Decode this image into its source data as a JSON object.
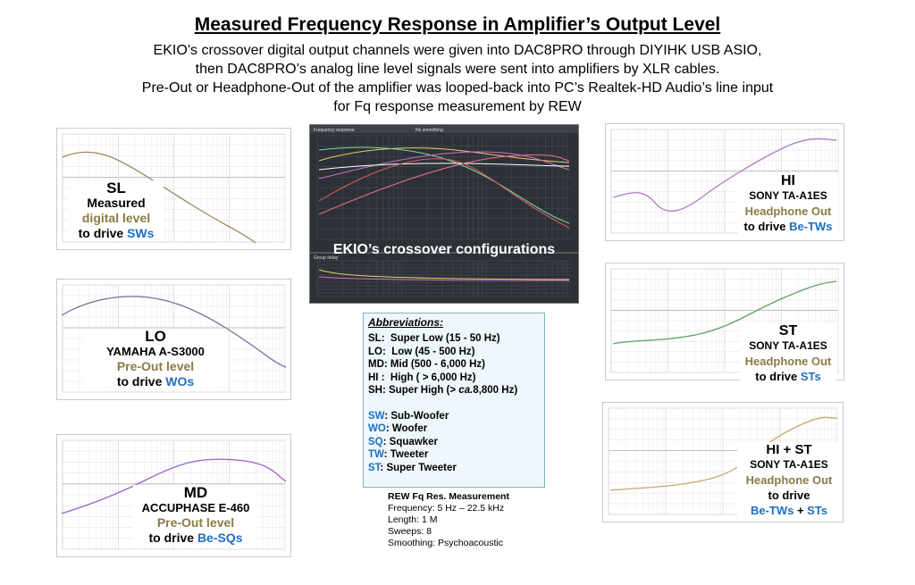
{
  "title": "Measured Frequency Response in Amplifier’s Output Level",
  "subtitle_lines": [
    "EKIO’s crossover digital output channels were given into DAC8PRO through DIYIHK USB ASIO,",
    "then DAC8PRO’s analog line level signals were sent into amplifiers by XLR cables.",
    "Pre-Out or Headphone-Out of the amplifier was looped-back into PC’s Realtek-HD Audio’s line input",
    "for Fq response measurement by REW"
  ],
  "panels": {
    "sl": {
      "band": "SL",
      "line1": "Measured",
      "line2": "digital level",
      "line3_prefix": "to drive ",
      "target": "SWs",
      "curve_color": "#9a8a5a"
    },
    "lo": {
      "band": "LO",
      "line1": "YAMAHA A-S3000",
      "line2": "Pre-Out level",
      "line3_prefix": "to drive ",
      "target": "WOs",
      "curve_color": "#7a6fa0"
    },
    "md": {
      "band": "MD",
      "line1": "ACCUPHASE E-460",
      "line2": "Pre-Out level",
      "line3_prefix": "to drive ",
      "target": "Be-SQs",
      "curve_color": "#9a62c8"
    },
    "hi": {
      "band": "HI",
      "line1": "SONY TA-A1ES",
      "line2": "Headphone Out",
      "line3_prefix": "to drive ",
      "target": "Be-TWs",
      "curve_color": "#b07ac0"
    },
    "st": {
      "band": "ST",
      "line1": "SONY TA-A1ES",
      "line2": "Headphone Out",
      "line3_prefix": "to drive ",
      "target": "STs",
      "curve_color": "#5fa05f"
    },
    "hist": {
      "band": "HI + ST",
      "line1": "SONY TA-A1ES",
      "line2": "Headphone Out",
      "line3": "to drive",
      "target_a": "Be-TWs",
      "plus": " + ",
      "target_b": "STs",
      "curve_color": "#c8a870"
    }
  },
  "crossover": {
    "caption": "EKIO’s crossover configurations",
    "header_left": "Frequency response",
    "header_mid": "No smoothing",
    "lower_label": "Group delay"
  },
  "abbreviations": {
    "heading": "Abbreviations:",
    "bands": [
      {
        "key": "SL:",
        "text": "Super Low (15 - 50 Hz)"
      },
      {
        "key": "LO:",
        "text": "Low (45 - 500 Hz)"
      },
      {
        "key": "MD:",
        "text": "Mid (500 - 6,000 Hz)"
      },
      {
        "key": "HI :",
        "text": "High ( > 6,000 Hz)"
      },
      {
        "key": "SH:",
        "text": "Super High (> ",
        "italic": "ca.",
        "rest": "8,800 Hz)"
      }
    ],
    "drivers": [
      {
        "key": "SW",
        "text": ": Sub-Woofer"
      },
      {
        "key": "WO",
        "text": ": Woofer"
      },
      {
        "key": "SQ",
        "text": ":  Squawker"
      },
      {
        "key": "TW",
        "text": ":  Tweeter"
      },
      {
        "key": "ST",
        "text": ":  Super Tweeter"
      }
    ]
  },
  "rew": {
    "heading": "REW Fq Res. Measurement",
    "lines": [
      "Frequency: 5 Hz – 22.5 kHz",
      "Length: 1 M",
      "Sweeps: 8",
      "Smoothing:  Psychoacoustic"
    ]
  },
  "colors": {
    "olive": "#8c7a45",
    "blue": "#1d6fc2"
  }
}
